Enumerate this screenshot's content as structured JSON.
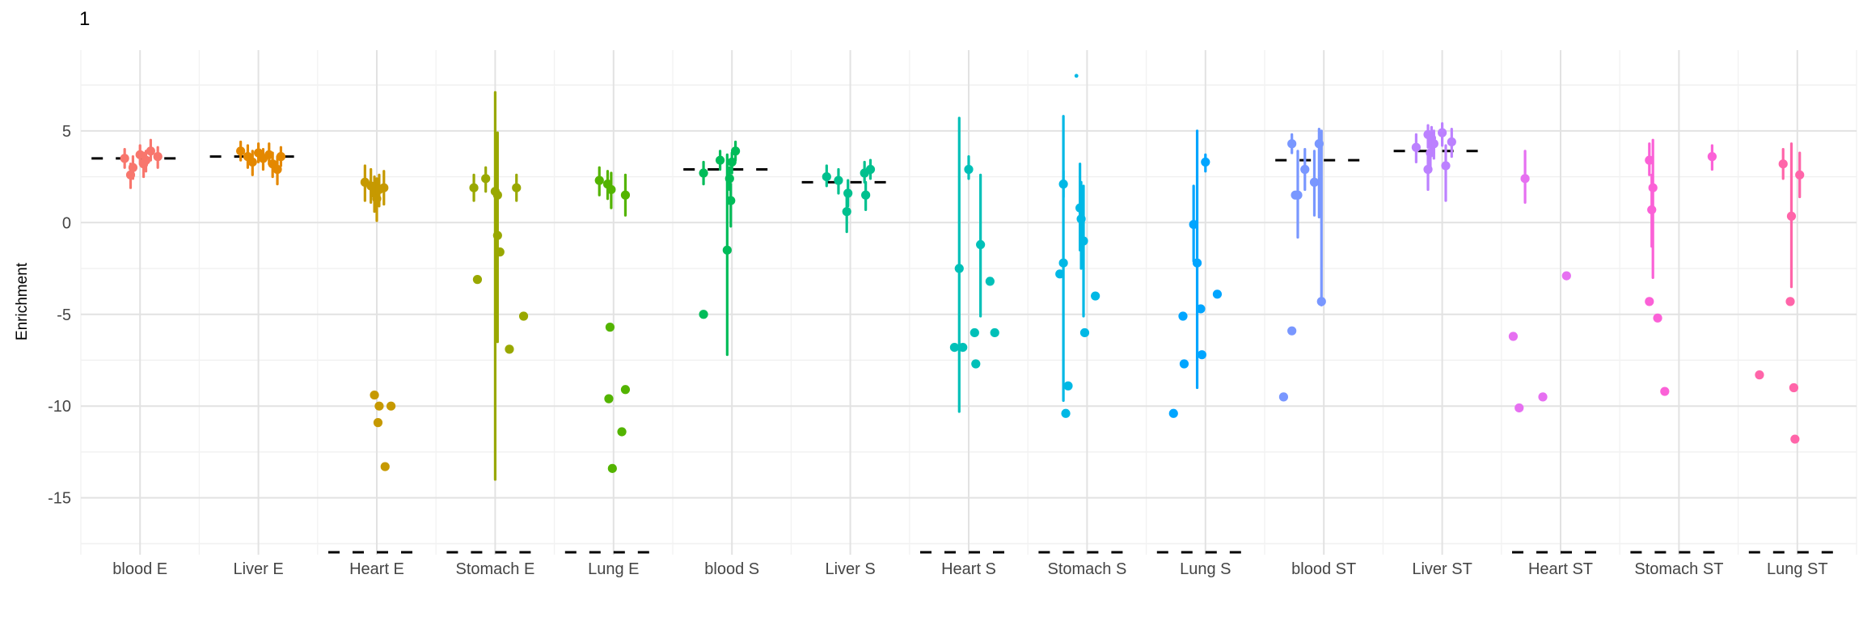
{
  "chart_data": {
    "type": "scatter",
    "subtype": "jittered-pointrange-with-median-dash",
    "title": "1",
    "ylabel": "Enrichment",
    "xlabel": "",
    "ylim": [
      -18.1,
      9.4
    ],
    "yticks": [
      5,
      0,
      -5,
      -10,
      -15
    ],
    "yminor": [
      7.5,
      2.5,
      -2.5,
      -7.5,
      -12.5,
      -17.5
    ],
    "grid": "on",
    "legend": "none",
    "tick_label_color": "#454545",
    "median_dash_color": "#000000",
    "categories": [
      {
        "label": "blood E",
        "color": "#F8766D",
        "median": 3.5,
        "points": [
          [
            -0.13,
            3.5,
            3.0,
            4.0
          ],
          [
            -0.06,
            3.0,
            2.4,
            3.6
          ],
          [
            -0.08,
            2.6,
            1.9,
            3.2
          ],
          [
            0.0,
            3.7,
            3.2,
            4.2
          ],
          [
            0.03,
            3.2,
            2.5,
            3.8
          ],
          [
            0.09,
            3.9,
            3.4,
            4.5
          ],
          [
            0.15,
            3.6,
            3.0,
            4.1
          ],
          [
            0.05,
            3.4,
            2.8,
            3.9
          ]
        ],
        "dots": []
      },
      {
        "label": "Liver E",
        "color": "#E48800",
        "median": 3.6,
        "points": [
          [
            -0.15,
            3.9,
            3.4,
            4.4
          ],
          [
            -0.09,
            3.6,
            3.0,
            4.2
          ],
          [
            -0.05,
            3.3,
            2.6,
            3.9
          ],
          [
            0.0,
            3.8,
            3.3,
            4.3
          ],
          [
            0.04,
            3.5,
            2.9,
            4.0
          ],
          [
            0.09,
            3.7,
            3.2,
            4.3
          ],
          [
            0.12,
            3.2,
            2.5,
            3.8
          ],
          [
            0.16,
            2.9,
            2.1,
            3.6
          ],
          [
            0.19,
            3.6,
            3.1,
            4.1
          ]
        ],
        "dots": []
      },
      {
        "label": "Heart E",
        "color": "#C69900",
        "median": "below-axis",
        "points": [
          [
            -0.1,
            2.2,
            1.2,
            3.1
          ],
          [
            -0.05,
            2.0,
            1.1,
            2.9
          ],
          [
            0.02,
            1.8,
            0.9,
            2.6
          ],
          [
            -0.02,
            1.6,
            0.6,
            2.5
          ],
          [
            0.0,
            1.3,
            0.1,
            2.4
          ],
          [
            0.06,
            1.9,
            1.0,
            2.8
          ]
        ],
        "dots": [
          [
            -0.02,
            -9.4
          ],
          [
            0.02,
            -10.0
          ],
          [
            0.12,
            -10.0
          ],
          [
            0.01,
            -10.9
          ],
          [
            0.07,
            -13.3
          ]
        ]
      },
      {
        "label": "Stomach E",
        "color": "#99A800",
        "median": "below-axis",
        "points": [
          [
            -0.18,
            1.9,
            1.2,
            2.6
          ],
          [
            -0.08,
            2.4,
            1.7,
            3.0
          ],
          [
            0.18,
            1.9,
            1.2,
            2.6
          ],
          [
            0.0,
            1.7,
            -14.0,
            7.1
          ],
          [
            0.02,
            1.5,
            -6.5,
            4.9
          ]
        ],
        "dots": [
          [
            0.02,
            -0.7
          ],
          [
            0.04,
            -1.6
          ],
          [
            -0.15,
            -3.1
          ],
          [
            0.24,
            -5.1
          ],
          [
            0.12,
            -6.9
          ]
        ]
      },
      {
        "label": "Lung E",
        "color": "#53B400",
        "median": "below-axis",
        "points": [
          [
            -0.12,
            2.3,
            1.5,
            3.0
          ],
          [
            -0.05,
            2.1,
            1.3,
            2.8
          ],
          [
            -0.02,
            1.8,
            0.8,
            2.7
          ],
          [
            0.1,
            1.5,
            0.4,
            2.6
          ]
        ],
        "dots": [
          [
            -0.03,
            -5.7
          ],
          [
            0.1,
            -9.1
          ],
          [
            -0.04,
            -9.6
          ],
          [
            0.07,
            -11.4
          ],
          [
            -0.01,
            -13.4
          ]
        ]
      },
      {
        "label": "blood S",
        "color": "#00BC59",
        "median": 2.9,
        "points": [
          [
            -0.24,
            2.7,
            2.1,
            3.3
          ],
          [
            -0.1,
            3.4,
            2.9,
            3.9
          ],
          [
            0.03,
            3.9,
            3.4,
            4.4
          ],
          [
            0.0,
            3.3,
            2.7,
            3.8
          ],
          [
            -0.02,
            2.4,
            1.8,
            3.0
          ],
          [
            -0.01,
            1.2,
            -0.2,
            2.1
          ],
          [
            -0.04,
            -1.5,
            -7.2,
            3.7
          ]
        ],
        "dots": [
          [
            -0.24,
            -5.0
          ]
        ]
      },
      {
        "label": "Liver S",
        "color": "#00C08E",
        "median": 2.2,
        "points": [
          [
            -0.2,
            2.5,
            2.0,
            3.1
          ],
          [
            -0.1,
            2.3,
            1.6,
            2.9
          ],
          [
            -0.02,
            1.6,
            0.9,
            2.3
          ],
          [
            0.12,
            2.7,
            2.2,
            3.3
          ],
          [
            0.17,
            2.9,
            2.4,
            3.4
          ],
          [
            0.13,
            1.5,
            0.7,
            2.2
          ],
          [
            -0.03,
            0.6,
            -0.5,
            1.4
          ]
        ],
        "dots": []
      },
      {
        "label": "Heart S",
        "color": "#00C0B8",
        "median": "below-axis",
        "points": [
          [
            0.0,
            2.9,
            2.4,
            3.6
          ],
          [
            0.1,
            -1.2,
            -5.1,
            2.6
          ],
          [
            -0.08,
            -2.5,
            -10.3,
            5.7
          ]
        ],
        "dots": [
          [
            0.18,
            -3.2
          ],
          [
            0.05,
            -6.0
          ],
          [
            0.22,
            -6.0
          ],
          [
            -0.12,
            -6.8
          ],
          [
            -0.05,
            -6.8
          ],
          [
            0.06,
            -7.7
          ]
        ]
      },
      {
        "label": "Stomach S",
        "color": "#00B8E5",
        "median": "below-axis",
        "points": [
          [
            -0.2,
            2.1,
            1.4,
            2.8
          ],
          [
            -0.2,
            -2.2,
            -9.7,
            5.8
          ],
          [
            -0.06,
            0.8,
            -1.5,
            3.2
          ],
          [
            -0.05,
            0.2,
            -2.5,
            2.2
          ],
          [
            -0.03,
            -1.0,
            -5.1,
            2.0
          ]
        ],
        "dots": [
          [
            -0.09,
            8.0,
            "tiny"
          ],
          [
            -0.23,
            -2.8
          ],
          [
            0.07,
            -4.0
          ],
          [
            -0.02,
            -6.0
          ],
          [
            -0.16,
            -8.9
          ],
          [
            -0.18,
            -10.4
          ]
        ]
      },
      {
        "label": "Lung S",
        "color": "#00A5FF",
        "median": "below-axis",
        "points": [
          [
            0.0,
            3.3,
            2.8,
            3.7
          ],
          [
            -0.1,
            -0.1,
            -2.1,
            2.0
          ],
          [
            -0.07,
            -2.2,
            -9.0,
            5.0
          ]
        ],
        "dots": [
          [
            0.1,
            -3.9
          ],
          [
            -0.04,
            -4.7
          ],
          [
            -0.19,
            -5.1
          ],
          [
            -0.03,
            -7.2
          ],
          [
            -0.18,
            -7.7
          ],
          [
            -0.27,
            -10.4
          ]
        ]
      },
      {
        "label": "blood ST",
        "color": "#7997FF",
        "median": 3.4,
        "points": [
          [
            -0.27,
            4.3,
            3.8,
            4.8
          ],
          [
            -0.22,
            1.5,
            -0.8,
            3.9
          ],
          [
            -0.16,
            2.9,
            1.8,
            4.0
          ],
          [
            -0.08,
            2.2,
            0.4,
            3.9
          ],
          [
            -0.04,
            4.3,
            0.3,
            5.1
          ],
          [
            -0.02,
            -4.3,
            -4.5,
            5.0
          ]
        ],
        "dots": [
          [
            -0.24,
            1.5
          ],
          [
            -0.27,
            -5.9
          ],
          [
            -0.34,
            -9.5
          ]
        ]
      },
      {
        "label": "Liver ST",
        "color": "#BC81FF",
        "median": 3.9,
        "points": [
          [
            -0.22,
            4.1,
            3.3,
            4.8
          ],
          [
            -0.12,
            4.8,
            4.1,
            5.3
          ],
          [
            -0.09,
            4.6,
            3.9,
            5.2
          ],
          [
            -0.07,
            4.3,
            3.5,
            5.0
          ],
          [
            -0.1,
            3.8,
            3.0,
            4.5
          ],
          [
            0.0,
            4.9,
            4.2,
            5.4
          ],
          [
            0.08,
            4.4,
            3.6,
            5.1
          ],
          [
            -0.12,
            2.9,
            1.8,
            3.9
          ],
          [
            0.03,
            3.1,
            1.2,
            4.2
          ]
        ],
        "dots": []
      },
      {
        "label": "Heart ST",
        "color": "#E670F1",
        "median": "below-axis",
        "points": [
          [
            -0.3,
            2.4,
            1.1,
            3.9
          ]
        ],
        "dots": [
          [
            0.05,
            -2.9
          ],
          [
            -0.4,
            -6.2
          ],
          [
            -0.15,
            -9.5
          ],
          [
            -0.35,
            -10.1
          ]
        ]
      },
      {
        "label": "Stomach ST",
        "color": "#FB61D7",
        "median": "below-axis",
        "points": [
          [
            -0.25,
            3.4,
            2.6,
            4.3
          ],
          [
            0.28,
            3.6,
            2.9,
            4.2
          ],
          [
            -0.22,
            1.9,
            -3.0,
            4.5
          ],
          [
            -0.23,
            0.7,
            -1.3,
            2.6
          ]
        ],
        "dots": [
          [
            -0.25,
            -4.3
          ],
          [
            -0.18,
            -5.2
          ],
          [
            -0.12,
            -9.2
          ]
        ]
      },
      {
        "label": "Lung ST",
        "color": "#FF65A9",
        "median": "below-axis",
        "points": [
          [
            -0.12,
            3.2,
            2.4,
            4.0
          ],
          [
            0.02,
            2.6,
            1.4,
            3.8
          ],
          [
            -0.05,
            0.35,
            -3.5,
            4.3
          ]
        ],
        "dots": [
          [
            -0.06,
            -4.3
          ],
          [
            -0.32,
            -8.3
          ],
          [
            -0.03,
            -9.0
          ],
          [
            -0.02,
            -11.8
          ]
        ]
      }
    ]
  }
}
